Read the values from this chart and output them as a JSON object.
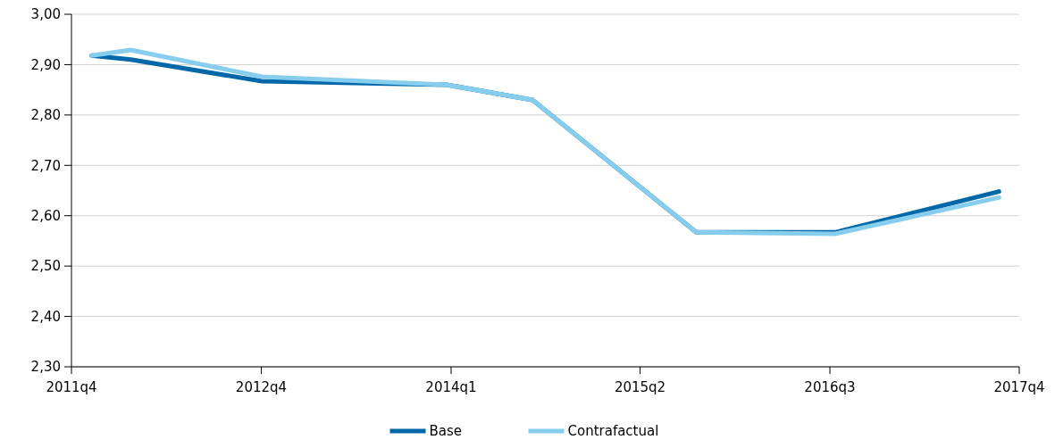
{
  "chart_data": {
    "type": "line",
    "x": [
      "2011-11-17",
      "2012-02-15",
      "2012-12-15",
      "2014-02-15",
      "2014-09-01",
      "2015-09-15",
      "2016-08-01",
      "2017-08-15"
    ],
    "series": [
      {
        "name": "Base",
        "color": "#0068a8",
        "values": [
          2.918,
          2.91,
          2.867,
          2.86,
          2.83,
          2.567,
          2.567,
          2.648
        ]
      },
      {
        "name": "Contrafactual",
        "color": "#86cdee",
        "values": [
          2.918,
          2.929,
          2.876,
          2.86,
          2.83,
          2.567,
          2.564,
          2.636
        ]
      }
    ],
    "xlim": [
      "2011-10-01",
      "2017-10-01"
    ],
    "xticks": [
      {
        "value": "2011-10-01",
        "label": "2011q4"
      },
      {
        "value": "2012-12-13",
        "label": "2012q4"
      },
      {
        "value": "2014-02-25",
        "label": "2014q1"
      },
      {
        "value": "2015-05-08",
        "label": "2015q2"
      },
      {
        "value": "2016-07-20",
        "label": "2016q3"
      },
      {
        "value": "2017-10-01",
        "label": "2017q4"
      }
    ],
    "ylim": [
      2.3,
      3.0
    ],
    "yticks": [
      {
        "value": 2.3,
        "label": "2,30"
      },
      {
        "value": 2.4,
        "label": "2,40"
      },
      {
        "value": 2.5,
        "label": "2,50"
      },
      {
        "value": 2.6,
        "label": "2,60"
      },
      {
        "value": 2.7,
        "label": "2,70"
      },
      {
        "value": 2.8,
        "label": "2,80"
      },
      {
        "value": 2.9,
        "label": "2,90"
      },
      {
        "value": 3.0,
        "label": "3,00"
      }
    ],
    "grid": "y",
    "legend": "bottom",
    "marker": "none",
    "line_style": "solid"
  }
}
